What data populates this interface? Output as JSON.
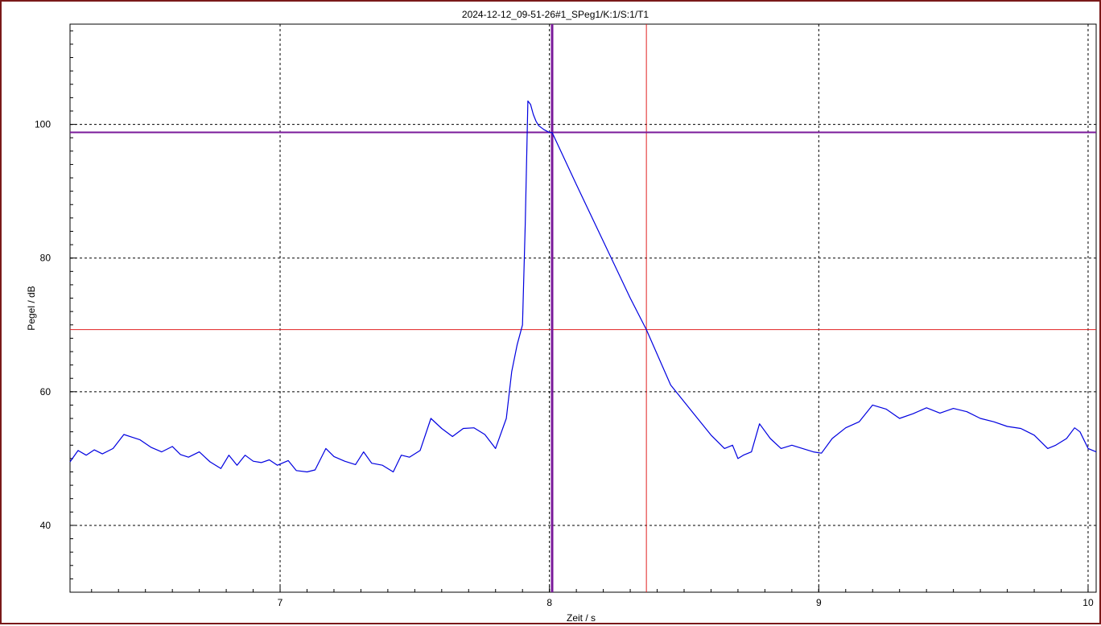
{
  "chart_data": {
    "type": "line",
    "title": "2024-12-12_09-51-26#1_SPeg1/K:1/S:1/T1",
    "xlabel": "Zeit / s",
    "ylabel": "Pegel / dB",
    "xlim": [
      6.22,
      10.03
    ],
    "ylim": [
      30,
      115
    ],
    "xticks": [
      7,
      8,
      9,
      10
    ],
    "yticks": [
      40,
      60,
      80,
      100
    ],
    "grid": true,
    "colors": {
      "series": "#0000e0",
      "red_cursor": "#e02020",
      "purple_cursor": "#7a1a9a",
      "frame": "#7a1a1a",
      "grid": "#000000"
    },
    "cursors": {
      "purple": {
        "x": 8.01,
        "y": 98.8
      },
      "red": {
        "x": 8.36,
        "y": 69.3
      }
    },
    "series": [
      {
        "x": [
          6.22,
          6.25,
          6.28,
          6.31,
          6.34,
          6.38,
          6.42,
          6.45,
          6.48,
          6.52,
          6.56,
          6.6,
          6.63,
          6.66,
          6.7,
          6.74,
          6.78,
          6.81,
          6.84,
          6.87,
          6.9,
          6.93,
          6.96,
          6.99,
          7.03,
          7.06,
          7.1,
          7.13,
          7.17,
          7.2,
          7.24,
          7.28,
          7.31,
          7.34,
          7.38,
          7.42,
          7.45,
          7.48,
          7.52,
          7.56,
          7.6,
          7.64,
          7.68,
          7.72,
          7.76,
          7.8,
          7.84,
          7.86,
          7.88,
          7.9,
          7.91,
          7.92,
          7.93,
          7.94,
          7.95,
          7.96,
          7.98,
          8.0,
          8.01,
          8.1,
          8.2,
          8.3,
          8.36,
          8.45,
          8.5,
          8.55,
          8.6,
          8.65,
          8.68,
          8.7,
          8.72,
          8.75,
          8.78,
          8.82,
          8.86,
          8.9,
          8.94,
          8.98,
          9.01,
          9.05,
          9.1,
          9.15,
          9.2,
          9.25,
          9.3,
          9.35,
          9.4,
          9.45,
          9.5,
          9.55,
          9.6,
          9.65,
          9.7,
          9.75,
          9.8,
          9.85,
          9.88,
          9.92,
          9.95,
          9.97,
          10.0,
          10.03
        ],
        "y": [
          49.5,
          51.2,
          50.5,
          51.3,
          50.7,
          51.5,
          53.6,
          53.2,
          52.8,
          51.7,
          51.0,
          51.8,
          50.6,
          50.2,
          51.0,
          49.5,
          48.5,
          50.5,
          49.0,
          50.5,
          49.6,
          49.4,
          49.8,
          49.0,
          49.7,
          48.2,
          48.0,
          48.3,
          51.5,
          50.3,
          49.6,
          49.1,
          51.0,
          49.3,
          49.0,
          48.0,
          50.5,
          50.2,
          51.2,
          56.0,
          54.5,
          53.3,
          54.5,
          54.6,
          53.6,
          51.5,
          56.0,
          63.0,
          67.0,
          70.0,
          85.0,
          103.5,
          103.0,
          101.5,
          100.5,
          99.8,
          99.2,
          98.8,
          98.8,
          91.0,
          82.5,
          74.0,
          69.3,
          61.0,
          58.5,
          56.0,
          53.5,
          51.5,
          52.0,
          50.0,
          50.5,
          51.0,
          55.2,
          53.0,
          51.5,
          52.0,
          51.5,
          51.0,
          50.8,
          53.0,
          54.6,
          55.5,
          58.0,
          57.4,
          56.0,
          56.7,
          57.6,
          56.8,
          57.5,
          57.0,
          56.0,
          55.5,
          54.8,
          54.5,
          53.5,
          51.5,
          52.0,
          53.0,
          54.6,
          54.0,
          51.5,
          51.0
        ]
      }
    ]
  }
}
